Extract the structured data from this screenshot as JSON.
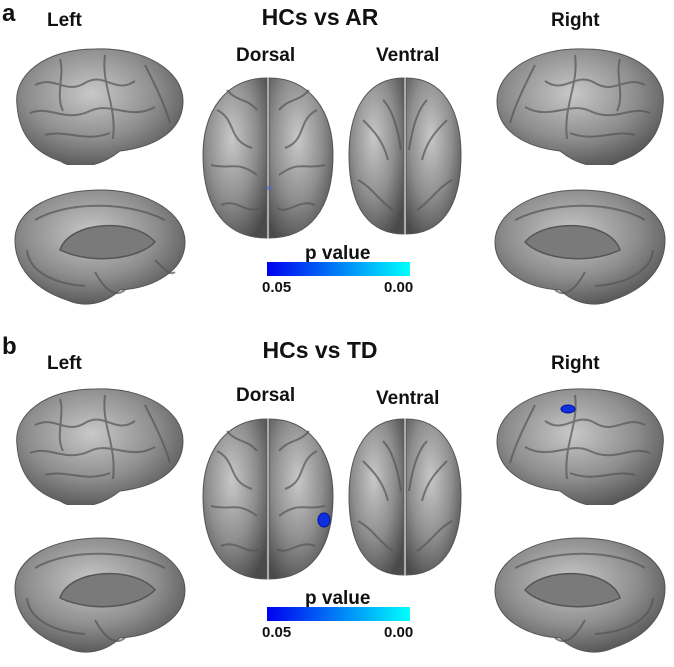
{
  "figure_title": "Brain surface maps comparing HCs with AR and TD groups",
  "colorbar_colors": {
    "low_p": "#0000ee",
    "high_p": "#00ffff"
  },
  "surface_color": "#8a8a8a",
  "panels": [
    {
      "letter": "a",
      "title": "HCs vs AR",
      "views": {
        "left": "Left",
        "right": "Right",
        "dorsal": "Dorsal",
        "ventral": "Ventral"
      },
      "colorbar": {
        "label": "p value",
        "min": "0.05",
        "max": "0.00"
      },
      "clusters": [
        "dorsal-small-faint"
      ]
    },
    {
      "letter": "b",
      "title": "HCs vs TD",
      "views": {
        "left": "Left",
        "right": "Right",
        "dorsal": "Dorsal",
        "ventral": "Ventral"
      },
      "colorbar": {
        "label": "p value",
        "min": "0.05",
        "max": "0.00"
      },
      "clusters": [
        "dorsal-right-hemisphere",
        "right-lateral-superior"
      ]
    }
  ]
}
